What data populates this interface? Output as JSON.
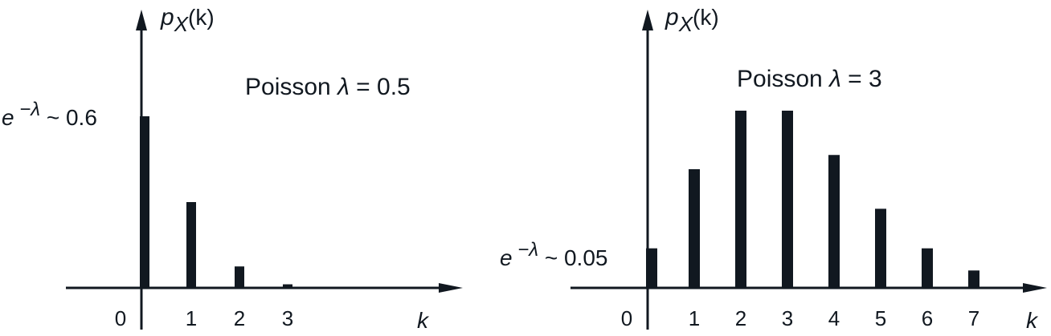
{
  "figure": {
    "axis_color": "#111820",
    "bar_color": "#111820"
  },
  "chart_data": [
    {
      "type": "bar",
      "title": "Poisson λ = 0.5",
      "title_parts": {
        "prefix": "Poisson",
        "lambda": "λ",
        "rest": "= 0.5"
      },
      "xlabel": "k",
      "ylabel": "p",
      "ylabel_sub": "X",
      "ylabel_arg": "(k)",
      "annotation": {
        "base": "e",
        "exp": "−λ",
        "rest": "~ 0.6",
        "value": 0.6
      },
      "categories": [
        "0",
        "1",
        "2",
        "3"
      ],
      "x": [
        0,
        1,
        2,
        3
      ],
      "values": [
        0.6,
        0.3,
        0.075,
        0.0125
      ],
      "ylim": [
        0,
        0.7
      ],
      "grid": false
    },
    {
      "type": "bar",
      "title": "Poisson λ = 3",
      "title_parts": {
        "prefix": "Poisson",
        "lambda": "λ",
        "rest": "= 3"
      },
      "xlabel": "k",
      "ylabel": "p",
      "ylabel_sub": "X",
      "ylabel_arg": "(k)",
      "annotation": {
        "base": "e",
        "exp": "−λ",
        "rest": "~ 0.05",
        "value": 0.05
      },
      "categories": [
        "0",
        "1",
        "2",
        "3",
        "4",
        "5",
        "6",
        "7"
      ],
      "x": [
        0,
        1,
        2,
        3,
        4,
        5,
        6,
        7
      ],
      "values": [
        0.05,
        0.15,
        0.224,
        0.224,
        0.168,
        0.1,
        0.05,
        0.022
      ],
      "ylim": [
        0,
        0.26
      ],
      "grid": false
    }
  ]
}
